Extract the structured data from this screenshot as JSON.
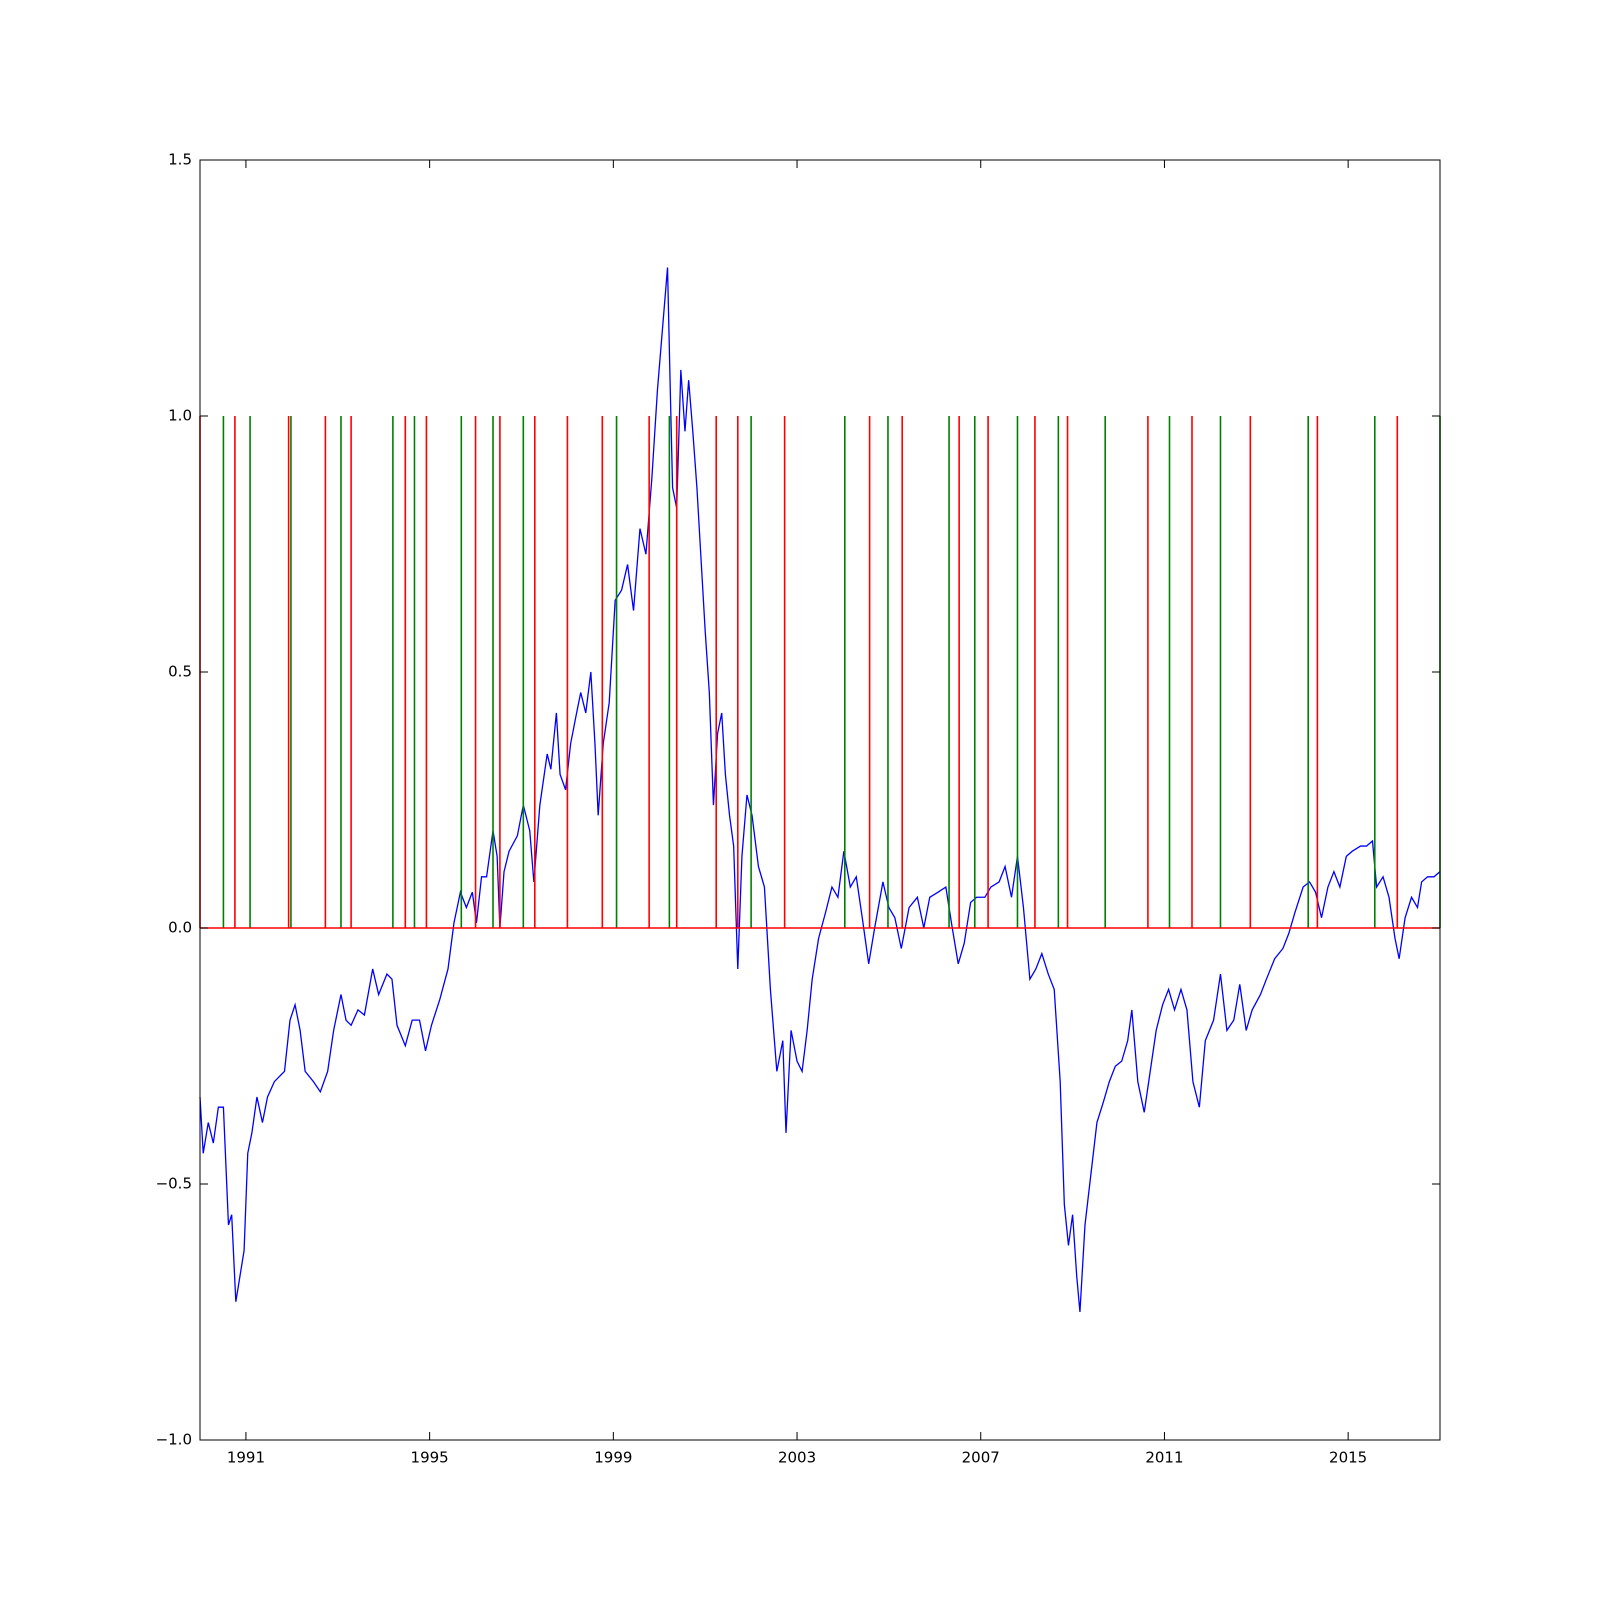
{
  "chart_data": {
    "type": "line",
    "xlim": [
      1990,
      2017
    ],
    "xticks": [
      1991,
      1995,
      1999,
      2003,
      2007,
      2011,
      2015
    ],
    "ylim": [
      -1,
      1.5
    ],
    "yticks": [
      {
        "value": -1,
        "label": "−1.0"
      },
      {
        "value": -0.5,
        "label": "−0.5"
      },
      {
        "value": 0,
        "label": "0.0"
      },
      0.5,
      {
        "value": 1,
        "label": "1.0"
      },
      1.5
    ],
    "series": [
      {
        "color": "#0000ff",
        "x": [
          1990.0,
          1990.07,
          1990.18,
          1990.29,
          1990.4,
          1990.51,
          1990.62,
          1990.69,
          1990.78,
          1990.87,
          1990.96,
          1991.04,
          1991.13,
          1991.24,
          1991.36,
          1991.47,
          1991.62,
          1991.84,
          1991.96,
          1992.07,
          1992.18,
          1992.29,
          1992.47,
          1992.62,
          1992.78,
          1992.91,
          1993.07,
          1993.18,
          1993.29,
          1993.44,
          1993.58,
          1993.76,
          1993.89,
          1994.07,
          1994.18,
          1994.29,
          1994.47,
          1994.62,
          1994.78,
          1994.91,
          1995.04,
          1995.22,
          1995.4,
          1995.53,
          1995.67,
          1995.8,
          1995.93,
          1996.02,
          1996.13,
          1996.24,
          1996.38,
          1996.47,
          1996.53,
          1996.62,
          1996.73,
          1996.91,
          1997.04,
          1997.18,
          1997.27,
          1997.4,
          1997.56,
          1997.64,
          1997.76,
          1997.84,
          1997.96,
          1998.07,
          1998.2,
          1998.29,
          1998.4,
          1998.51,
          1998.6,
          1998.67,
          1998.78,
          1998.91,
          1999.04,
          1999.18,
          1999.31,
          1999.44,
          1999.58,
          1999.71,
          1999.84,
          1999.96,
          2000.07,
          2000.18,
          2000.24,
          2000.29,
          2000.38,
          2000.47,
          2000.56,
          2000.64,
          2000.73,
          2000.82,
          2000.91,
          2001.0,
          2001.09,
          2001.18,
          2001.27,
          2001.36,
          2001.44,
          2001.53,
          2001.62,
          2001.71,
          2001.8,
          2001.91,
          2002.02,
          2002.16,
          2002.29,
          2002.42,
          2002.56,
          2002.69,
          2002.76,
          2002.87,
          2003.0,
          2003.11,
          2003.22,
          2003.33,
          2003.47,
          2003.62,
          2003.76,
          2003.89,
          2004.02,
          2004.16,
          2004.29,
          2004.42,
          2004.56,
          2004.69,
          2004.87,
          2005.0,
          2005.13,
          2005.27,
          2005.44,
          2005.62,
          2005.76,
          2005.89,
          2006.07,
          2006.24,
          2006.38,
          2006.51,
          2006.64,
          2006.78,
          2006.91,
          2007.09,
          2007.22,
          2007.4,
          2007.53,
          2007.67,
          2007.8,
          2007.93,
          2008.07,
          2008.2,
          2008.33,
          2008.47,
          2008.6,
          2008.73,
          2008.82,
          2008.91,
          2009.0,
          2009.09,
          2009.16,
          2009.27,
          2009.4,
          2009.53,
          2009.67,
          2009.8,
          2009.93,
          2010.07,
          2010.2,
          2010.29,
          2010.42,
          2010.56,
          2010.69,
          2010.82,
          2010.96,
          2011.09,
          2011.22,
          2011.36,
          2011.49,
          2011.62,
          2011.76,
          2011.89,
          2012.07,
          2012.22,
          2012.36,
          2012.51,
          2012.64,
          2012.78,
          2012.91,
          2013.09,
          2013.22,
          2013.4,
          2013.58,
          2013.71,
          2013.84,
          2014.02,
          2014.16,
          2014.29,
          2014.42,
          2014.56,
          2014.69,
          2014.82,
          2014.96,
          2015.09,
          2015.27,
          2015.4,
          2015.53,
          2015.62,
          2015.76,
          2015.89,
          2016.02,
          2016.11,
          2016.24,
          2016.38,
          2016.51,
          2016.6,
          2016.73,
          2016.87,
          2017.0
        ],
        "values": [
          -0.33,
          -0.44,
          -0.38,
          -0.42,
          -0.35,
          -0.35,
          -0.58,
          -0.56,
          -0.73,
          -0.68,
          -0.63,
          -0.44,
          -0.4,
          -0.33,
          -0.38,
          -0.33,
          -0.3,
          -0.28,
          -0.18,
          -0.15,
          -0.2,
          -0.28,
          -0.3,
          -0.32,
          -0.28,
          -0.2,
          -0.13,
          -0.18,
          -0.19,
          -0.16,
          -0.17,
          -0.08,
          -0.13,
          -0.09,
          -0.1,
          -0.19,
          -0.23,
          -0.18,
          -0.18,
          -0.24,
          -0.19,
          -0.14,
          -0.08,
          0.01,
          0.07,
          0.04,
          0.07,
          0.01,
          0.1,
          0.1,
          0.19,
          0.14,
          0.0,
          0.11,
          0.15,
          0.18,
          0.24,
          0.19,
          0.09,
          0.24,
          0.34,
          0.31,
          0.42,
          0.3,
          0.27,
          0.36,
          0.42,
          0.46,
          0.42,
          0.5,
          0.36,
          0.22,
          0.36,
          0.44,
          0.64,
          0.66,
          0.71,
          0.62,
          0.78,
          0.73,
          0.88,
          1.05,
          1.17,
          1.29,
          1.05,
          0.86,
          0.82,
          1.09,
          0.97,
          1.07,
          0.97,
          0.86,
          0.72,
          0.58,
          0.46,
          0.24,
          0.38,
          0.42,
          0.3,
          0.22,
          0.16,
          -0.08,
          0.14,
          0.26,
          0.22,
          0.12,
          0.08,
          -0.12,
          -0.28,
          -0.22,
          -0.4,
          -0.2,
          -0.26,
          -0.28,
          -0.2,
          -0.1,
          -0.02,
          0.03,
          0.08,
          0.06,
          0.15,
          0.08,
          0.1,
          0.02,
          -0.07,
          0.0,
          0.09,
          0.04,
          0.02,
          -0.04,
          0.04,
          0.06,
          0.0,
          0.06,
          0.07,
          0.08,
          0.0,
          -0.07,
          -0.03,
          0.05,
          0.06,
          0.06,
          0.08,
          0.09,
          0.12,
          0.06,
          0.14,
          0.04,
          -0.1,
          -0.08,
          -0.05,
          -0.09,
          -0.12,
          -0.3,
          -0.54,
          -0.62,
          -0.56,
          -0.68,
          -0.75,
          -0.58,
          -0.48,
          -0.38,
          -0.34,
          -0.3,
          -0.27,
          -0.26,
          -0.22,
          -0.16,
          -0.3,
          -0.36,
          -0.28,
          -0.2,
          -0.15,
          -0.12,
          -0.16,
          -0.12,
          -0.16,
          -0.3,
          -0.35,
          -0.22,
          -0.18,
          -0.09,
          -0.2,
          -0.18,
          -0.11,
          -0.2,
          -0.16,
          -0.13,
          -0.1,
          -0.06,
          -0.04,
          -0.01,
          0.03,
          0.08,
          0.09,
          0.07,
          0.02,
          0.08,
          0.11,
          0.08,
          0.14,
          0.15,
          0.16,
          0.16,
          0.17,
          0.08,
          0.1,
          0.06,
          -0.02,
          -0.06,
          0.02,
          0.06,
          0.04,
          0.09,
          0.1,
          0.1,
          0.11
        ]
      }
    ],
    "vlines": [
      {
        "color": "#008000",
        "ymin": 0,
        "ymax": 1,
        "x": [
          1990.51,
          1991.09,
          1991.98,
          1993.07,
          1994.2,
          1994.67,
          1995.69,
          1996.38,
          1997.04,
          1999.07,
          2000.22,
          2002.0,
          2004.04,
          2004.98,
          2006.31,
          2006.87,
          2007.8,
          2008.69,
          2009.71,
          2011.11,
          2012.22,
          2014.13,
          2015.58,
          2017.0
        ]
      },
      {
        "color": "#ff0000",
        "ymin": 0,
        "ymax": 1,
        "x": [
          1990.0,
          1990.76,
          1991.93,
          1992.73,
          1993.29,
          1994.47,
          1994.93,
          1996.0,
          1996.53,
          1997.29,
          1998.0,
          1998.76,
          1999.78,
          2000.38,
          2001.24,
          2001.71,
          2002.73,
          2004.58,
          2005.29,
          2006.53,
          2007.16,
          2008.18,
          2008.89,
          2010.64,
          2011.6,
          2012.87,
          2014.33,
          2016.07
        ]
      }
    ],
    "hline": {
      "y": 0,
      "color": "#ff0000"
    }
  }
}
